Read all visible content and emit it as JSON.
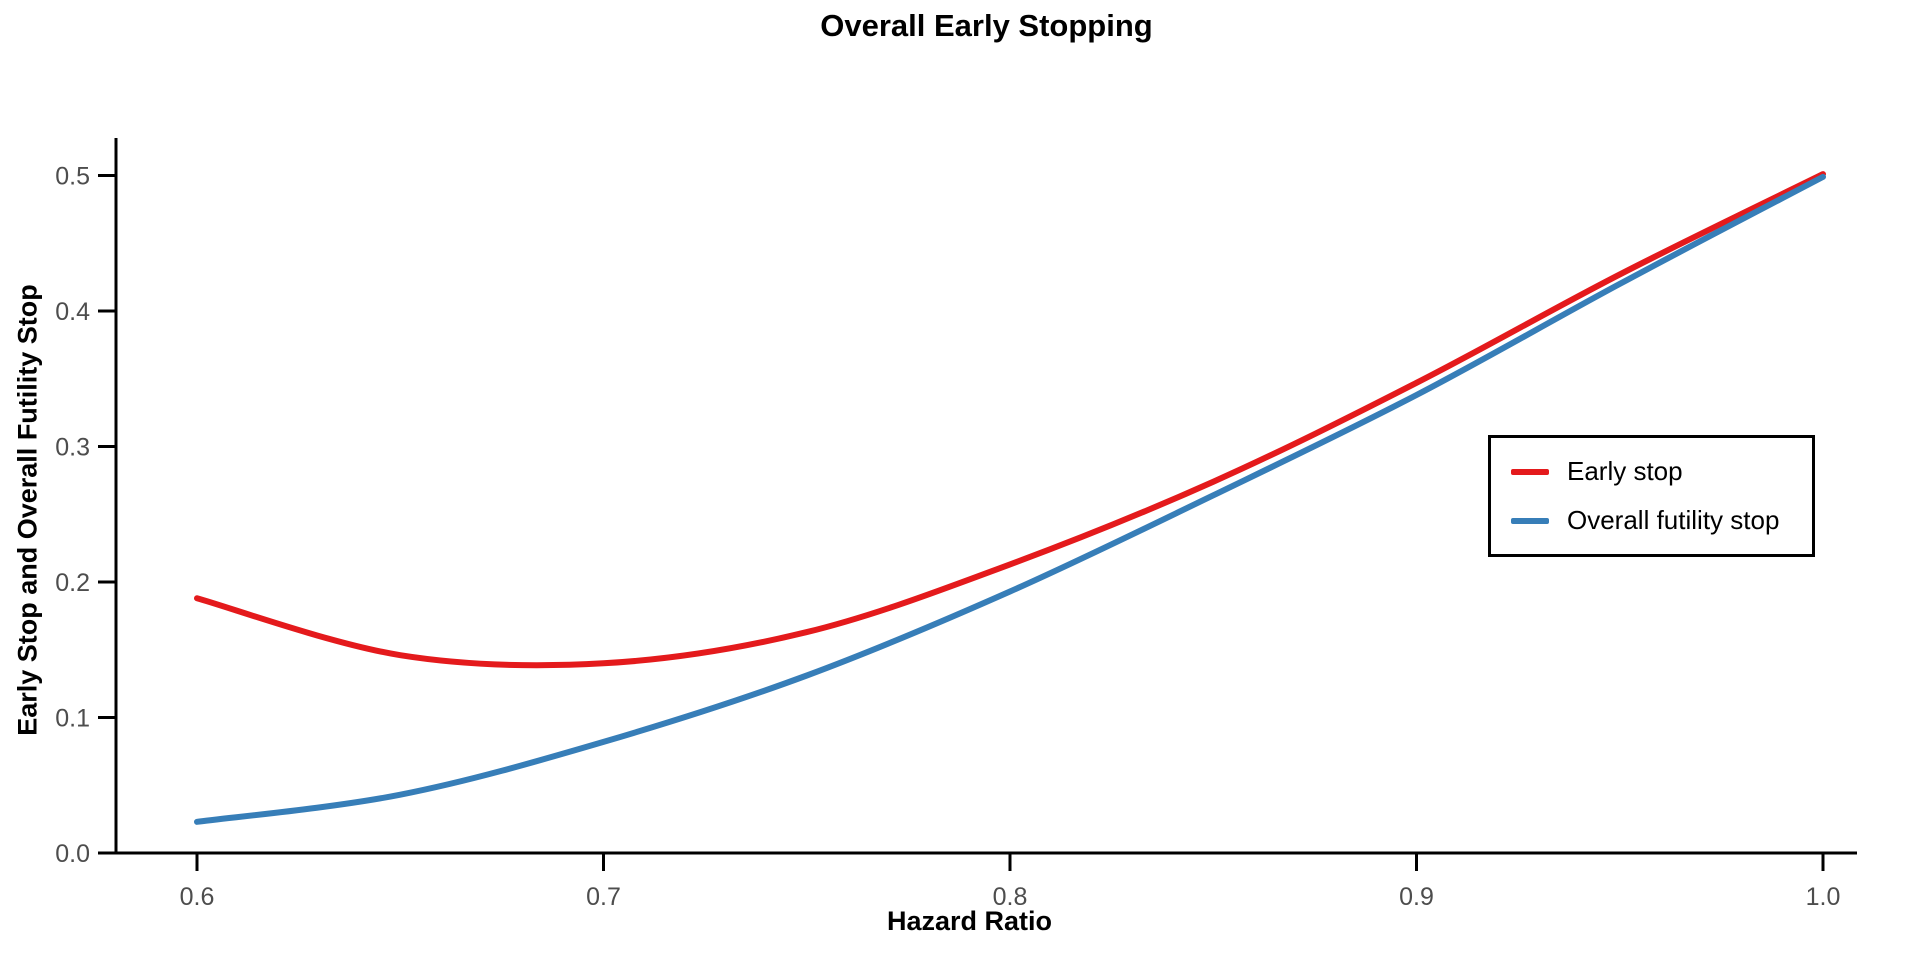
{
  "header": {
    "title": "Overall Early Stopping"
  },
  "chart_data": {
    "type": "line",
    "title": "Overall Early Stopping",
    "xlabel": "Hazard Ratio",
    "ylabel": "Early Stop and Overall Futility Stop",
    "xlim": [
      0.58,
      1.01
    ],
    "ylim": [
      0.0,
      0.53
    ],
    "grid": false,
    "legend_position": "inside-right",
    "x_ticks": [
      0.6,
      0.7,
      0.8,
      0.9,
      1.0
    ],
    "x_tick_labels": [
      "0.6",
      "0.7",
      "0.8",
      "0.9",
      "1.0"
    ],
    "y_ticks": [
      0.0,
      0.1,
      0.2,
      0.3,
      0.4,
      0.5
    ],
    "y_tick_labels": [
      "0.0",
      "0.1",
      "0.2",
      "0.3",
      "0.4",
      "0.5"
    ],
    "x": [
      0.6,
      0.65,
      0.7,
      0.75,
      0.8,
      0.85,
      0.9,
      0.95,
      1.0
    ],
    "series": [
      {
        "name": "Early stop",
        "color": "#E41A1C",
        "values": [
          0.188,
          0.146,
          0.14,
          0.163,
          0.213,
          0.274,
          0.347,
          0.427,
          0.501
        ]
      },
      {
        "name": "Overall futility stop",
        "color": "#377EB8",
        "values": [
          0.023,
          0.043,
          0.082,
          0.131,
          0.193,
          0.264,
          0.338,
          0.42,
          0.499
        ]
      }
    ],
    "axis_color": "#000000",
    "tick_label_color": "#4D4D4D"
  }
}
